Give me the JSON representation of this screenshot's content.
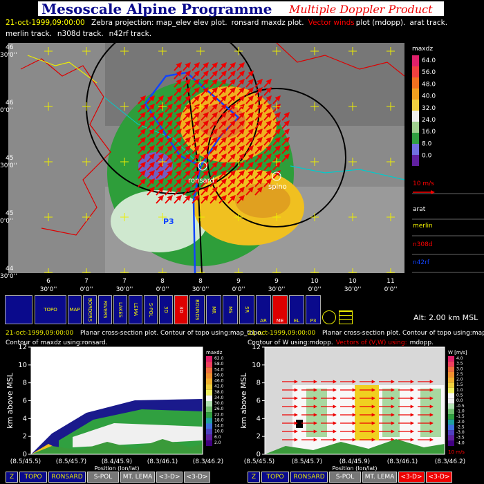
{
  "header": {
    "title": "Mesoscale Alpine Programme",
    "subtitle": "Multiple Doppler Product"
  },
  "info": {
    "date": "21-oct-1999,09:00:00",
    "line1": [
      "Zebra projection: map_elev elev plot.",
      "ronsard maxdz plot.",
      "Vector winds",
      "plot (mdopp).",
      "arat track."
    ],
    "line2": [
      "merlin track.",
      "n308d track.",
      "n42rf track."
    ]
  },
  "map": {
    "lat_labels": [
      {
        "deg": "46",
        "min": "30'0''"
      },
      {
        "deg": "46",
        "min": "0'0''"
      },
      {
        "deg": "45",
        "min": "30'0''"
      },
      {
        "deg": "45",
        "min": "0'0''"
      },
      {
        "deg": "44",
        "min": "30'0''"
      }
    ],
    "lon_labels": [
      {
        "deg": "6",
        "min": "30'0''"
      },
      {
        "deg": "7",
        "min": "0'0''"
      },
      {
        "deg": "7",
        "min": "30'0''"
      },
      {
        "deg": "8",
        "min": "0'0''"
      },
      {
        "deg": "8",
        "min": "30'0''"
      },
      {
        "deg": "9",
        "min": "0'0''"
      },
      {
        "deg": "9",
        "min": "30'0''"
      },
      {
        "deg": "10",
        "min": "0'0''"
      },
      {
        "deg": "10",
        "min": "30'0''"
      },
      {
        "deg": "11",
        "min": "0'0''"
      }
    ],
    "stations": [
      "ronsard",
      "spino",
      "P3"
    ],
    "colorbar": {
      "title": "maxdz",
      "labels": [
        "64.0",
        "56.0",
        "48.0",
        "40.0",
        "32.0",
        "24.0",
        "16.0",
        "8.0",
        "0.0"
      ]
    },
    "legend": [
      "10 m/s",
      "arat",
      "merlin",
      "n308d",
      "n42rf"
    ]
  },
  "toolbar": {
    "buttons": [
      "TOPO",
      "MAP",
      "BORDERS",
      "RIVERS",
      "LAKES",
      "LEMA",
      "S-POL",
      "3D",
      "3D",
      "BOUNDS",
      "MR",
      "MS",
      "SR",
      "AR",
      "ME",
      "EL",
      "P3"
    ],
    "altitude": "Alt: 2.00 km MSL"
  },
  "sections": [
    {
      "caption": [
        "21-oct-1999,09:00:00",
        "Planar cross-section plot.  Contour of topo using:map_topo.",
        "Contour of maxdz using:ronsard."
      ],
      "y_label": "km above MSL",
      "yticks": [
        0,
        2,
        4,
        6,
        8,
        10,
        12
      ],
      "x_labels": [
        "(8.5/45.5)",
        "(8.5/45.7)",
        "(8.4/45.9)",
        "(8.3/46.1)",
        "(8.3/46.2)"
      ],
      "x_title": "Position (lon/lat)",
      "colorbar": {
        "title": "maxdz",
        "labels": [
          "62.0",
          "58.0",
          "54.0",
          "50.0",
          "46.0",
          "42.0",
          "38.0",
          "34.0",
          "30.0",
          "26.0",
          "22.0",
          "18.0",
          "14.0",
          "10.0",
          "6.0",
          "2.0"
        ]
      },
      "buttons": [
        "Z",
        "TOPO",
        "RONSARD",
        "S-POL",
        "MT. LEMA",
        "<3-D>",
        "<3-D>"
      ]
    },
    {
      "caption": [
        "21-oct-1999,09:00:00",
        "Planar cross-section plot.  Contour of topo using:map_topo.",
        "Contour of W using:mdopp.",
        "Vectors of (V,W) using:",
        "mdopp."
      ],
      "y_label": "km above MSL",
      "yticks": [
        0,
        2,
        4,
        6,
        8,
        10,
        12
      ],
      "x_labels": [
        "(8.5/45.5)",
        "(8.5/45.7)",
        "(8.4/45.9)",
        "(8.3/46.1)",
        "(8.3/46.2)"
      ],
      "x_title": "Position (lon/lat)",
      "colorbar": {
        "title": "W [m/s]",
        "labels": [
          "4.0",
          "3.5",
          "3.0",
          "2.5",
          "2.0",
          "1.5",
          "1.0",
          "0.5",
          "0.0",
          "-0.5",
          "-1.0",
          "-1.5",
          "-2.0",
          "-2.5",
          "-3.0",
          "-3.5",
          "-4.0"
        ],
        "unit": "10 m/s"
      },
      "buttons": [
        "Z",
        "TOPO",
        "RONSARD",
        "S-POL",
        "MT. LEMA",
        "<3-D>",
        "<3-D>"
      ]
    }
  ]
}
